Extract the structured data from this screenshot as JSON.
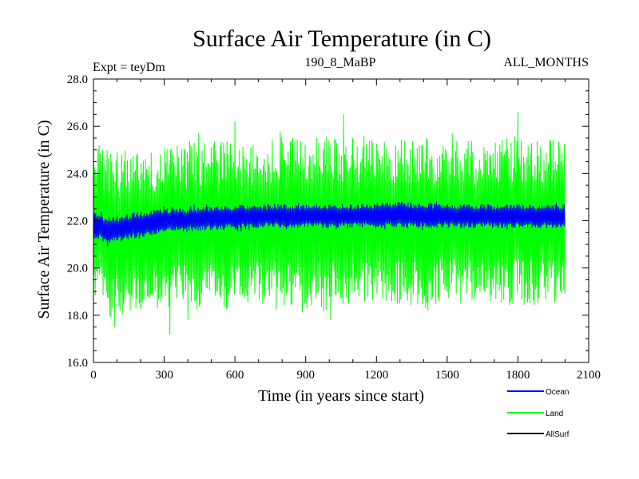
{
  "chart_data": {
    "type": "line",
    "title": "Surface Air Temperature (in C)",
    "subtitle_left": "Expt = teyDm",
    "subtitle_center": "190_8_MaBP",
    "subtitle_right": "ALL_MONTHS",
    "xlabel": "Time (in years since start)",
    "ylabel": "Surface Air Temperature (in C)",
    "xlim": [
      0,
      2100
    ],
    "ylim": [
      16.0,
      28.0
    ],
    "x_ticks": [
      0,
      300,
      600,
      900,
      1200,
      1500,
      1800,
      2100
    ],
    "x_tick_labels": [
      "0",
      "300",
      "600",
      "900",
      "1200",
      "1500",
      "1800",
      "2100"
    ],
    "y_ticks": [
      16,
      18,
      20,
      22,
      24,
      26,
      28
    ],
    "y_tick_labels": [
      "16.0",
      "18.0",
      "20.0",
      "22.0",
      "24.0",
      "26.0",
      "28.0"
    ],
    "x_minor_step": 100,
    "y_minor_step": 0.5,
    "legend_position": "bottom-right, below plot",
    "series": [
      {
        "name": "Land",
        "color": "#00ff00",
        "x_range": [
          0,
          2000
        ],
        "profile_x": [
          0,
          50,
          100,
          200,
          400,
          600,
          800,
          1000,
          1200,
          1400,
          1600,
          1800,
          2000
        ],
        "profile_low": [
          18.6,
          18.0,
          17.8,
          18.1,
          18.2,
          18.3,
          18.4,
          18.3,
          18.5,
          18.4,
          18.5,
          18.4,
          18.5
        ],
        "profile_high": [
          25.6,
          25.2,
          24.9,
          25.1,
          25.3,
          25.4,
          25.5,
          25.6,
          25.4,
          25.5,
          25.4,
          25.6,
          25.4
        ],
        "spikes_high": [
          {
            "x": 1060,
            "y": 26.5
          },
          {
            "x": 1800,
            "y": 26.6
          },
          {
            "x": 600,
            "y": 26.2
          },
          {
            "x": 1255,
            "y": 26.2
          },
          {
            "x": 0,
            "y": 26.0
          }
        ],
        "spikes_low": [
          {
            "x": 130,
            "y": 17.1
          },
          {
            "x": 325,
            "y": 17.2
          },
          {
            "x": 90,
            "y": 17.5
          }
        ]
      },
      {
        "name": "Ocean",
        "color": "#0000ff",
        "x_range": [
          0,
          2000
        ],
        "profile_x": [
          0,
          50,
          100,
          200,
          300,
          500,
          700,
          900,
          1100,
          1300,
          1500,
          1700,
          1900,
          2000
        ],
        "profile_low": [
          21.3,
          21.0,
          21.1,
          21.3,
          21.5,
          21.6,
          21.7,
          21.7,
          21.7,
          21.7,
          21.7,
          21.7,
          21.7,
          21.7
        ],
        "profile_high": [
          22.5,
          22.2,
          22.2,
          22.4,
          22.5,
          22.6,
          22.7,
          22.7,
          22.7,
          22.8,
          22.7,
          22.7,
          22.7,
          22.7
        ]
      },
      {
        "name": "AllSurf",
        "color": "#000000",
        "x_range": [
          0,
          2000
        ]
      }
    ]
  }
}
